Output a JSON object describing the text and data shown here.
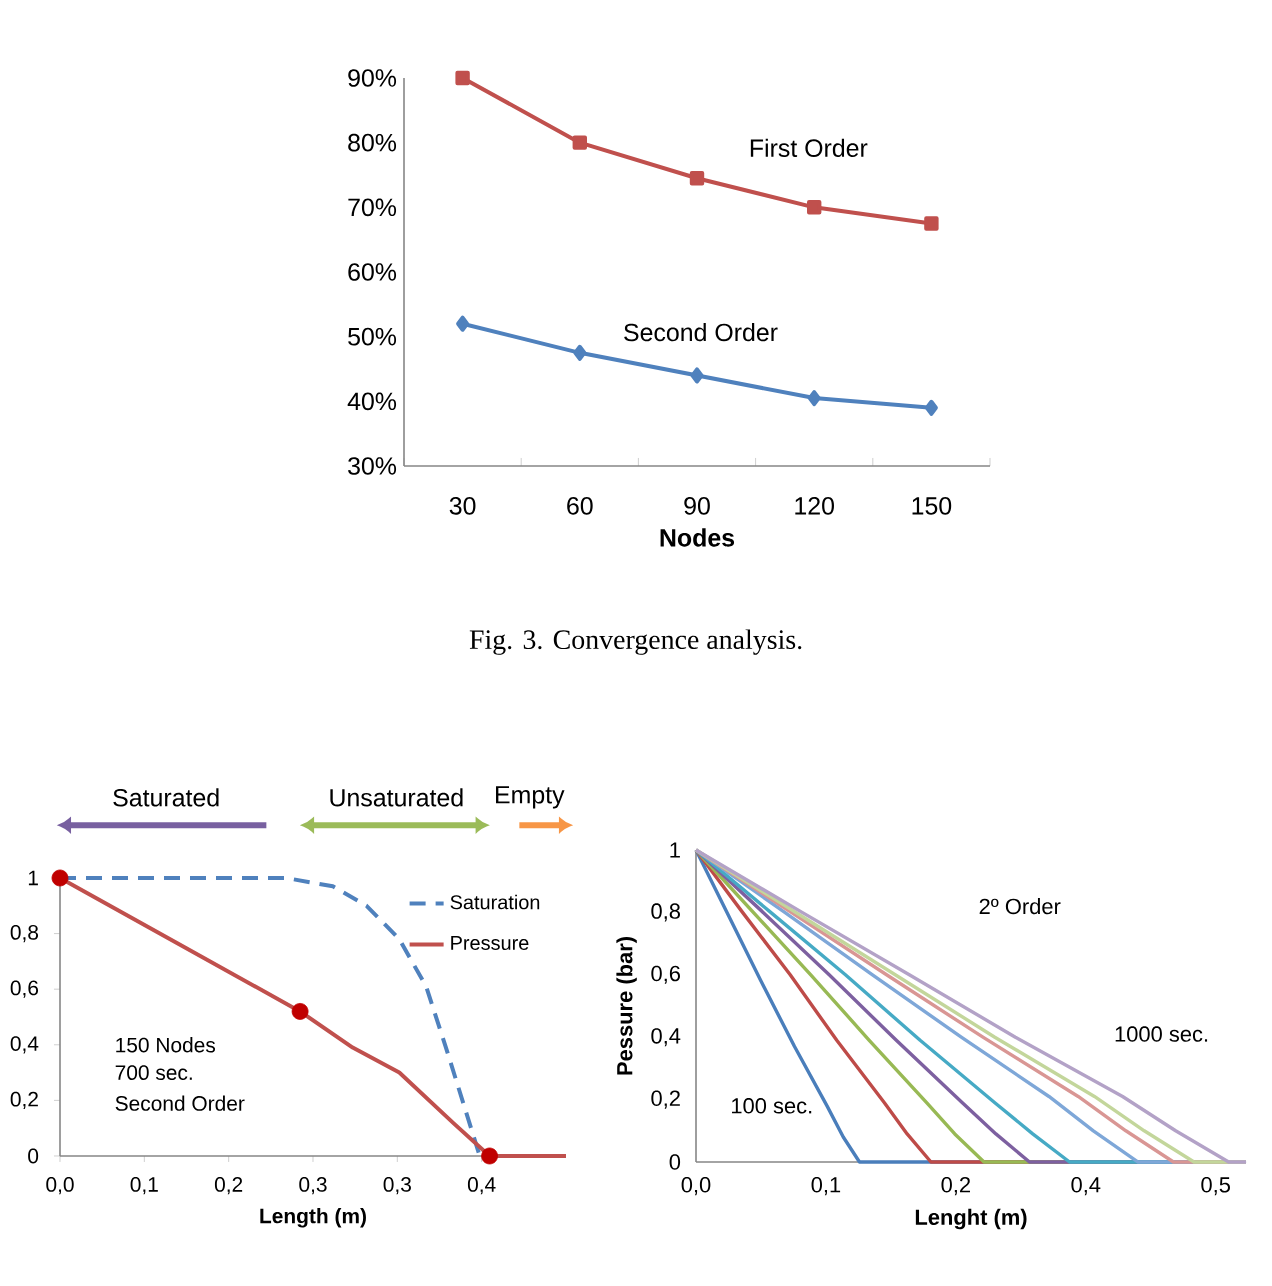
{
  "chart_data": [
    {
      "type": "line",
      "xlabel": "Nodes",
      "categories": [
        "30",
        "60",
        "90",
        "120",
        "150"
      ],
      "ylim": [
        30,
        90
      ],
      "yticks": [
        {
          "value": 30,
          "label": "30%"
        },
        {
          "value": 40,
          "label": "40%"
        },
        {
          "value": 50,
          "label": "50%"
        },
        {
          "value": 60,
          "label": "60%"
        },
        {
          "value": 70,
          "label": "70%"
        },
        {
          "value": 80,
          "label": "80%"
        },
        {
          "value": 90,
          "label": "90%"
        }
      ],
      "series": [
        {
          "name": "First Order",
          "color": "#c0504d",
          "marker": "square",
          "values": [
            90,
            80,
            74.5,
            70,
            67.5
          ]
        },
        {
          "name": "Second Order",
          "color": "#4f81bd",
          "marker": "diamond",
          "values": [
            52,
            47.5,
            44,
            40.5,
            39
          ]
        }
      ],
      "annotations": [
        "Fig. 3. Convergence analysis."
      ]
    },
    {
      "type": "line",
      "xlabel": "Length (m)",
      "xlim": [
        0,
        0.51
      ],
      "ylim": [
        0,
        1
      ],
      "xticks": [
        {
          "value": 0,
          "label": "0,0"
        },
        {
          "value": 0.085,
          "label": "0,1"
        },
        {
          "value": 0.17,
          "label": "0,2"
        },
        {
          "value": 0.255,
          "label": "0,3"
        },
        {
          "value": 0.34,
          "label": "0,3"
        },
        {
          "value": 0.425,
          "label": "0,4"
        }
      ],
      "yticks": [
        0,
        {
          "value": 0.2,
          "label": "0,2"
        },
        {
          "value": 0.4,
          "label": "0,4"
        },
        {
          "value": 0.6,
          "label": "0,6"
        },
        {
          "value": 0.8,
          "label": "0,8"
        },
        1
      ],
      "legend": "top right",
      "series": [
        {
          "name": "Saturation",
          "color": "#4f81bd",
          "line_style": "dashed",
          "x": [
            0,
            0.228,
            0.275,
            0.309,
            0.342,
            0.369,
            0.389,
            0.41,
            0.423
          ],
          "values": [
            1,
            1,
            0.97,
            0.9,
            0.78,
            0.61,
            0.39,
            0.15,
            0
          ]
        },
        {
          "name": "Pressure",
          "color": "#c0504d",
          "x": [
            0,
            0.121,
            0.242,
            0.295,
            0.342,
            0.396,
            0.433,
            0.51
          ],
          "values": [
            1,
            0.76,
            0.52,
            0.39,
            0.3,
            0.12,
            0,
            0
          ]
        },
        {
          "type": "scatter",
          "color": "#c00000",
          "marker": "circle",
          "x": [
            0,
            0.242,
            0.433
          ],
          "values": [
            1,
            0.52,
            0
          ]
        }
      ],
      "annotations": [
        "150 Nodes",
        "700 sec.",
        "Second Order",
        "Saturated",
        "Unsaturated",
        "Empty"
      ]
    },
    {
      "type": "line",
      "xlabel": "Lenght (m)",
      "ylabel": "Pessure (bar)",
      "xlim": [
        0,
        0.508
      ],
      "ylim": [
        0,
        1
      ],
      "xticks": [
        {
          "value": 0,
          "label": "0,0"
        },
        {
          "value": 0.12,
          "label": "0,1"
        },
        {
          "value": 0.24,
          "label": "0,2"
        },
        {
          "value": 0.36,
          "label": "0,4"
        },
        {
          "value": 0.48,
          "label": "0,5"
        }
      ],
      "yticks": [
        0,
        {
          "value": 0.2,
          "label": "0,2"
        },
        {
          "value": 0.4,
          "label": "0,4"
        },
        {
          "value": 0.6,
          "label": "0,6"
        },
        {
          "value": 0.8,
          "label": "0,8"
        },
        1
      ],
      "series": [
        {
          "color": "#4a7ebb",
          "x": [
            0,
            0.03,
            0.06,
            0.091,
            0.121,
            0.136,
            0.151,
            0.508
          ],
          "values": [
            1,
            0.79,
            0.58,
            0.37,
            0.18,
            0.08,
            0,
            0
          ]
        },
        {
          "color": "#be4b48",
          "x": [
            0,
            0.043,
            0.087,
            0.13,
            0.174,
            0.195,
            0.217,
            0.508
          ],
          "values": [
            1,
            0.8,
            0.6,
            0.39,
            0.19,
            0.09,
            0,
            0
          ]
        },
        {
          "color": "#98b954",
          "x": [
            0,
            0.053,
            0.106,
            0.16,
            0.213,
            0.239,
            0.266,
            0.508
          ],
          "values": [
            1,
            0.8,
            0.6,
            0.39,
            0.19,
            0.09,
            0,
            0
          ]
        },
        {
          "color": "#7d60a0",
          "x": [
            0,
            0.062,
            0.123,
            0.185,
            0.246,
            0.277,
            0.308,
            0.508
          ],
          "values": [
            1,
            0.8,
            0.6,
            0.39,
            0.19,
            0.09,
            0,
            0
          ]
        },
        {
          "color": "#46aac5",
          "x": [
            0,
            0.069,
            0.138,
            0.207,
            0.276,
            0.311,
            0.345,
            0.508
          ],
          "values": [
            1,
            0.8,
            0.6,
            0.39,
            0.19,
            0.09,
            0,
            0
          ]
        },
        {
          "color": "#7ea7d8",
          "x": [
            0,
            0.082,
            0.163,
            0.245,
            0.326,
            0.367,
            0.408,
            0.508
          ],
          "values": [
            1,
            0.8,
            0.6,
            0.4,
            0.21,
            0.1,
            0,
            0
          ]
        },
        {
          "color": "#d99694",
          "x": [
            0,
            0.088,
            0.176,
            0.265,
            0.353,
            0.397,
            0.441,
            0.508
          ],
          "values": [
            1,
            0.8,
            0.6,
            0.4,
            0.21,
            0.1,
            0,
            0
          ]
        },
        {
          "color": "#c3d69b",
          "x": [
            0,
            0.092,
            0.184,
            0.276,
            0.368,
            0.414,
            0.46,
            0.508
          ],
          "values": [
            1,
            0.8,
            0.6,
            0.4,
            0.21,
            0.1,
            0,
            0
          ]
        },
        {
          "color": "#b3a2c7",
          "x": [
            0,
            0.098,
            0.197,
            0.295,
            0.394,
            0.443,
            0.492,
            0.508
          ],
          "values": [
            1,
            0.8,
            0.6,
            0.4,
            0.21,
            0.1,
            0,
            0
          ]
        }
      ],
      "annotations": [
        "2º Order",
        "100 sec.",
        "1000 sec."
      ]
    }
  ]
}
